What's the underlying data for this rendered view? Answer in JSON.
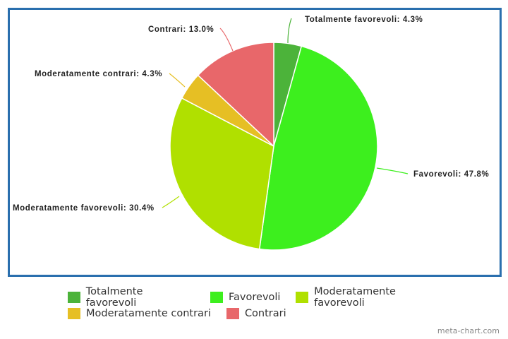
{
  "chart_data": {
    "type": "pie",
    "title": "",
    "categories": [
      "Totalmente favorevoli",
      "Favorevoli",
      "Moderatamente favorevoli",
      "Moderatamente contrari",
      "Contrari"
    ],
    "values": [
      4.3,
      47.8,
      30.4,
      4.3,
      13.0
    ],
    "colors": [
      "#4cb33a",
      "#3def1e",
      "#b0e000",
      "#e6bf24",
      "#e8676a"
    ],
    "data_labels": [
      "Totalmente favorevoli: 4.3%",
      "Favorevoli: 47.8%",
      "Moderatamente favorevoli: 30.4%",
      "Moderatamente contrari: 4.3%",
      "Contrari: 13.0%"
    ],
    "legend_position": "bottom"
  },
  "legend": {
    "items": [
      {
        "label": "Totalmente favorevoli",
        "color": "#4cb33a"
      },
      {
        "label": "Favorevoli",
        "color": "#3def1e"
      },
      {
        "label": "Moderatamente favorevoli",
        "color": "#b0e000"
      },
      {
        "label": "Moderatamente contrari",
        "color": "#e6bf24"
      },
      {
        "label": "Contrari",
        "color": "#e8676a"
      }
    ]
  },
  "credit": "meta-chart.com"
}
